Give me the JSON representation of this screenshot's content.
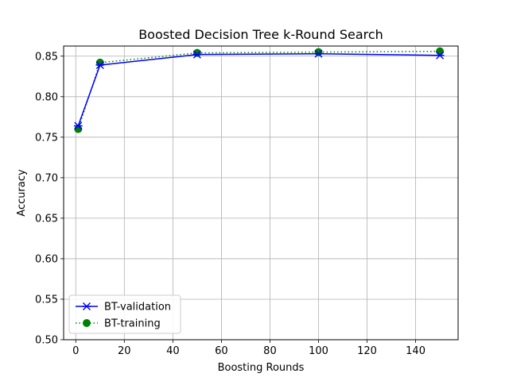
{
  "chart_data": {
    "type": "line",
    "title": "Boosted Decision Tree k-Round Search",
    "xlabel": "Boosting Rounds",
    "ylabel": "Accuracy",
    "xlim": [
      -5,
      157.5
    ],
    "ylim": [
      0.5,
      0.8625
    ],
    "xticks": [
      0,
      20,
      40,
      60,
      80,
      100,
      120,
      140
    ],
    "yticks": [
      0.5,
      0.55,
      0.6,
      0.65,
      0.7,
      0.75,
      0.8,
      0.85
    ],
    "ytick_labels": [
      "0.50",
      "0.55",
      "0.60",
      "0.65",
      "0.70",
      "0.75",
      "0.80",
      "0.85"
    ],
    "grid": true,
    "legend_position": "lower-left",
    "series": [
      {
        "name": "BT-validation",
        "color": "#0000ff",
        "line_style": "solid",
        "marker": "x-star",
        "x": [
          1,
          10,
          50,
          100,
          150
        ],
        "y": [
          0.764,
          0.839,
          0.852,
          0.853,
          0.851
        ]
      },
      {
        "name": "BT-training",
        "color": "#008000",
        "line_style": "dotted",
        "marker": "circle",
        "x": [
          1,
          10,
          50,
          100,
          150
        ],
        "y": [
          0.76,
          0.842,
          0.854,
          0.855,
          0.856
        ]
      }
    ]
  }
}
